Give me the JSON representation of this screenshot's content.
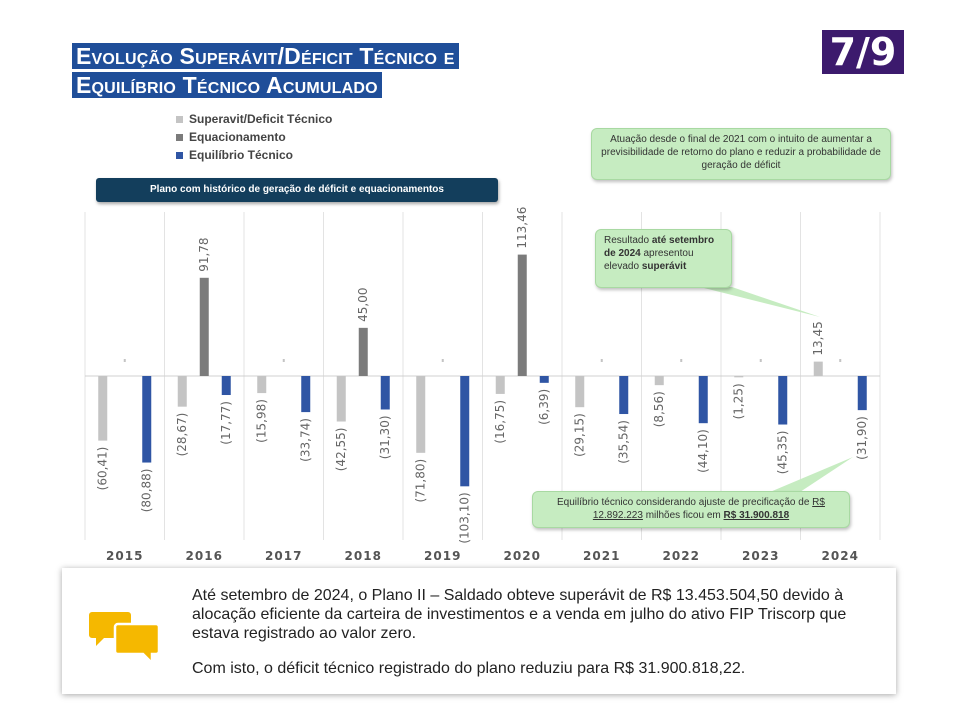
{
  "title": {
    "line1": "Evolução Superávit/Déficit Técnico e",
    "line2": "Equilíbrio Técnico Acumulado"
  },
  "page_number": "7/9",
  "colors": {
    "title_bg": "#1f4e99",
    "page_bg": "#3c1a6d",
    "series_superavit": "#c4c4c4",
    "series_equacionamento": "#7b7b7b",
    "series_equilibrio": "#2f55a4",
    "callout_green": "#c6ecc1",
    "callout_dark": "#133e5c",
    "chat_icon": "#f5b800"
  },
  "callouts": {
    "historico": "Plano com histórico de geração de déficit e equacionamentos",
    "atuacao": "Atuação desde o final de 2021 com o intuito de aumentar a previsibilidade de retorno do plano e reduzir a probabilidade de geração de déficit",
    "resultado": {
      "p1": "Resultado ",
      "p2": "até setembro de 2024",
      "p3": " apresentou elevado ",
      "p4": "superávit"
    },
    "equilibrio": {
      "p1": "Equilíbrio técnico considerando ajuste de precificação de ",
      "p2": "R$ 12.892.223",
      "p3": " milhões ficou em ",
      "p4": "R$ 31.900.818"
    }
  },
  "summary": {
    "paragraph1": "Até setembro de 2024, o Plano II – Saldado obteve superávit de R$ 13.453.504,50 devido à alocação eficiente da carteira de investimentos e a venda em julho do ativo FIP Triscorp que estava registrado ao valor zero.",
    "paragraph2": "Com isto, o déficit técnico registrado do plano reduziu para R$ 31.900.818,22.",
    "icon": "chat-bubbles-icon"
  },
  "chart_data": {
    "type": "bar",
    "categories": [
      "2015",
      "2016",
      "2017",
      "2018",
      "2019",
      "2020",
      "2021",
      "2022",
      "2023",
      "2024"
    ],
    "series": [
      {
        "name": "Superavit/Deficit Técnico",
        "color": "#c4c4c4",
        "values": [
          -60.41,
          -28.67,
          -15.98,
          -42.55,
          -71.8,
          -16.75,
          -29.15,
          -8.56,
          -1.25,
          13.45
        ],
        "labels": [
          "(60,41)",
          "(28,67)",
          "(15,98)",
          "(42,55)",
          "(71,80)",
          "(16,75)",
          "(29,15)",
          "(8,56)",
          "(1,25)",
          "13,45"
        ]
      },
      {
        "name": "Equacionamento",
        "color": "#7b7b7b",
        "values": [
          0,
          91.78,
          0,
          45.0,
          0,
          113.46,
          0,
          0,
          0,
          0
        ],
        "labels": [
          "",
          "91,78",
          "",
          "45,00",
          "",
          "113,46",
          "",
          "",
          "",
          ""
        ]
      },
      {
        "name": "Equilíbrio Técnico",
        "color": "#2f55a4",
        "values": [
          -80.88,
          -17.77,
          -33.74,
          -31.3,
          -103.1,
          -6.39,
          -35.54,
          -44.1,
          -45.35,
          -31.9
        ],
        "labels": [
          "(80,88)",
          "(17,77)",
          "(33,74)",
          "(31,30)",
          "(103,10)",
          "(6,39)",
          "(35,54)",
          "(44,10)",
          "(45,35)",
          "(31,90)"
        ]
      }
    ],
    "grid": "vertical separators",
    "legend_position": "top-left"
  }
}
